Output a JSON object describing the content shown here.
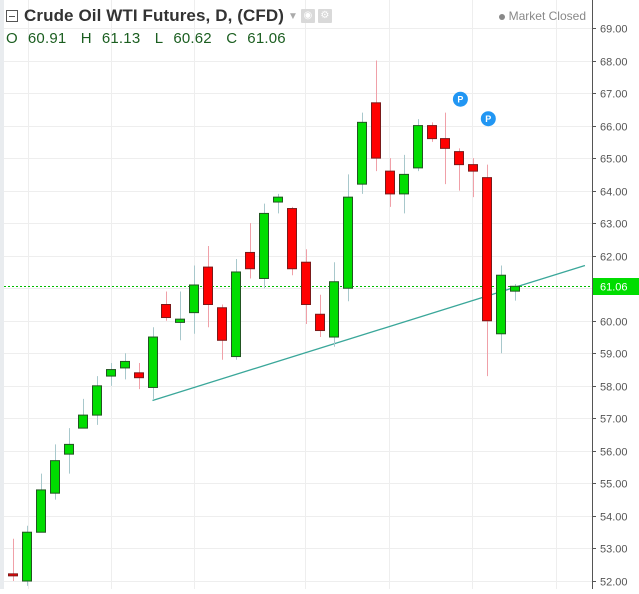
{
  "header": {
    "title": "Crude Oil WTI Futures, D, (CFD)",
    "ohlc": {
      "open_label": "O",
      "open": "60.91",
      "high_label": "H",
      "high": "61.13",
      "low_label": "L",
      "low": "60.62",
      "close_label": "C",
      "close": "61.06"
    },
    "market_status": "Market Closed",
    "icons": [
      "collapse-icon",
      "caret-down-icon",
      "eye-icon",
      "gear-icon"
    ]
  },
  "colors": {
    "up": "#00dd00",
    "down": "#ff0000",
    "border": "#225522",
    "wick_up": "#a8c8cc",
    "wick_down": "#f0a0a8",
    "trendline": "#3aa79a",
    "price_line": "#00bb00",
    "price_badge": "#00dd00",
    "marker": "#2196f3",
    "grid": "#eeeeee",
    "axis": "#555555"
  },
  "chart_data": {
    "type": "candlestick",
    "title": "Crude Oil WTI Futures, D, (CFD)",
    "xlabel": "",
    "ylabel": "",
    "ylim": [
      51.9,
      69.5
    ],
    "y_ticks": [
      "69.00",
      "68.00",
      "67.00",
      "66.00",
      "65.00",
      "64.00",
      "63.00",
      "62.00",
      "61.00",
      "60.00",
      "59.00",
      "58.00",
      "57.00",
      "56.00",
      "55.00",
      "54.00",
      "53.00",
      "52.00"
    ],
    "current_price": "61.06",
    "grid": true,
    "candles": [
      {
        "o": 52.22,
        "h": 53.3,
        "l": 52.0,
        "c": 52.18
      },
      {
        "o": 52.0,
        "h": 53.7,
        "l": 51.85,
        "c": 53.5
      },
      {
        "o": 53.5,
        "h": 55.3,
        "l": 53.5,
        "c": 54.8
      },
      {
        "o": 54.7,
        "h": 56.2,
        "l": 54.5,
        "c": 55.7
      },
      {
        "o": 55.9,
        "h": 56.7,
        "l": 55.3,
        "c": 56.2
      },
      {
        "o": 56.7,
        "h": 57.6,
        "l": 56.7,
        "c": 57.1
      },
      {
        "o": 57.1,
        "h": 58.3,
        "l": 56.8,
        "c": 58.0
      },
      {
        "o": 58.3,
        "h": 58.7,
        "l": 58.0,
        "c": 58.5
      },
      {
        "o": 58.55,
        "h": 59.0,
        "l": 58.2,
        "c": 58.75
      },
      {
        "o": 58.4,
        "h": 58.7,
        "l": 57.9,
        "c": 58.25
      },
      {
        "o": 57.95,
        "h": 59.8,
        "l": 57.6,
        "c": 59.5
      },
      {
        "o": 60.5,
        "h": 60.9,
        "l": 60.0,
        "c": 60.1
      },
      {
        "o": 59.95,
        "h": 60.9,
        "l": 59.4,
        "c": 60.05
      },
      {
        "o": 60.25,
        "h": 61.7,
        "l": 59.6,
        "c": 61.1
      },
      {
        "o": 61.65,
        "h": 62.3,
        "l": 59.8,
        "c": 60.5
      },
      {
        "o": 60.4,
        "h": 60.5,
        "l": 58.8,
        "c": 59.4
      },
      {
        "o": 58.9,
        "h": 61.9,
        "l": 58.8,
        "c": 61.5
      },
      {
        "o": 62.1,
        "h": 63.0,
        "l": 61.3,
        "c": 61.6
      },
      {
        "o": 61.3,
        "h": 63.6,
        "l": 61.0,
        "c": 63.3
      },
      {
        "o": 63.65,
        "h": 63.9,
        "l": 63.3,
        "c": 63.8
      },
      {
        "o": 63.45,
        "h": 63.5,
        "l": 61.4,
        "c": 61.6
      },
      {
        "o": 61.8,
        "h": 62.2,
        "l": 59.9,
        "c": 60.5
      },
      {
        "o": 60.2,
        "h": 60.8,
        "l": 59.5,
        "c": 59.7
      },
      {
        "o": 59.5,
        "h": 61.8,
        "l": 59.2,
        "c": 61.2
      },
      {
        "o": 61.0,
        "h": 64.5,
        "l": 60.6,
        "c": 63.8
      },
      {
        "o": 64.2,
        "h": 66.4,
        "l": 63.9,
        "c": 66.1
      },
      {
        "o": 66.7,
        "h": 68.0,
        "l": 64.6,
        "c": 65.0
      },
      {
        "o": 64.6,
        "h": 65.0,
        "l": 63.5,
        "c": 63.9
      },
      {
        "o": 63.9,
        "h": 65.1,
        "l": 63.3,
        "c": 64.5
      },
      {
        "o": 64.7,
        "h": 66.2,
        "l": 64.6,
        "c": 66.0
      },
      {
        "o": 66.0,
        "h": 66.1,
        "l": 65.5,
        "c": 65.6
      },
      {
        "o": 65.6,
        "h": 66.4,
        "l": 64.2,
        "c": 65.3
      },
      {
        "o": 65.2,
        "h": 65.3,
        "l": 64.0,
        "c": 64.8
      },
      {
        "o": 64.8,
        "h": 65.0,
        "l": 63.8,
        "c": 64.6
      },
      {
        "o": 64.4,
        "h": 64.8,
        "l": 58.3,
        "c": 60.0
      },
      {
        "o": 59.6,
        "h": 61.7,
        "l": 59.0,
        "c": 61.4
      },
      {
        "o": 60.91,
        "h": 61.13,
        "l": 60.62,
        "c": 61.06
      }
    ],
    "trendline": {
      "from_index": 10,
      "from_price": 57.55,
      "to_index": 41,
      "to_price": 61.7
    },
    "markers": [
      {
        "index": 32,
        "price": 65.95,
        "label": "P"
      },
      {
        "index": 34,
        "price": 65.35,
        "label": "P"
      }
    ]
  }
}
